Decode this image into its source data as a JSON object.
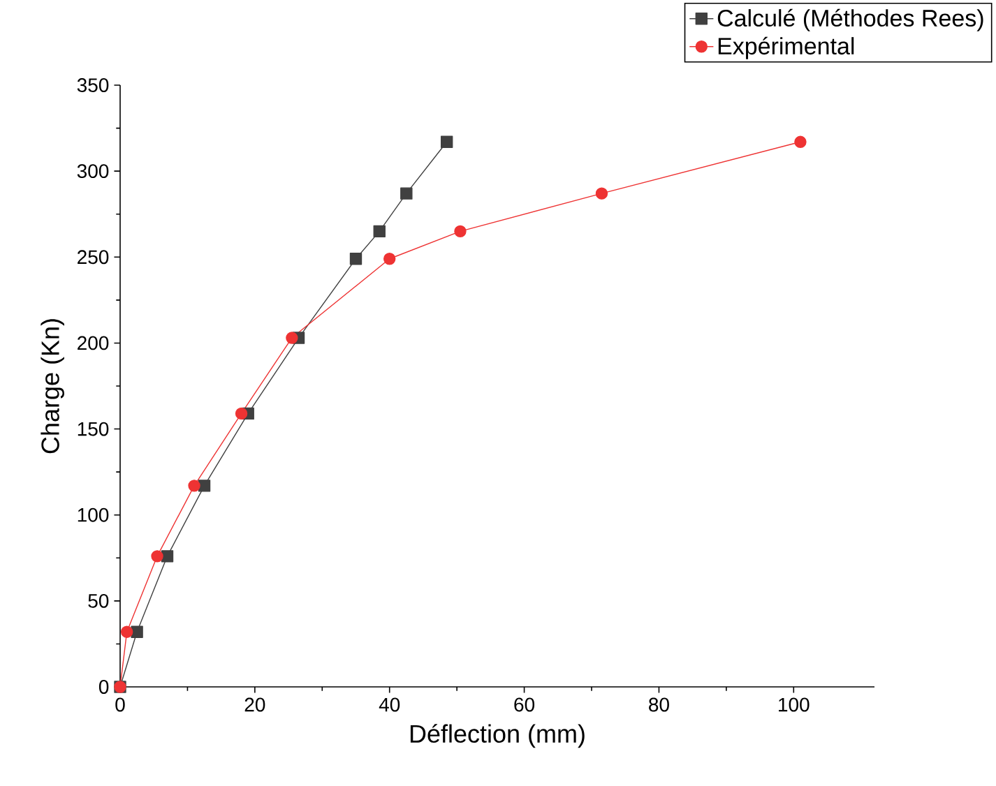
{
  "chart_data": {
    "type": "line",
    "xlabel": "Déflection (mm)",
    "ylabel": "Charge (Kn)",
    "xlim": [
      0,
      112
    ],
    "ylim": [
      0,
      350
    ],
    "xticks": [
      0,
      20,
      40,
      60,
      80,
      100
    ],
    "yticks": [
      0,
      50,
      100,
      150,
      200,
      250,
      300,
      350
    ],
    "legend": "top right",
    "series": [
      {
        "name": "Calculé (Méthodes Rees)",
        "color": "#404040",
        "marker": "square",
        "x": [
          0,
          2.5,
          7,
          12.5,
          19,
          26.5,
          35,
          38.5,
          42.5,
          48.5
        ],
        "values": [
          0,
          32,
          76,
          117,
          159,
          203,
          249,
          265,
          287,
          317
        ]
      },
      {
        "name": "Expérimental",
        "color": "#ee3333",
        "marker": "circle",
        "x": [
          0,
          1,
          5.5,
          11,
          18,
          25.5,
          40,
          50.5,
          71.5,
          101
        ],
        "values": [
          0,
          32,
          76,
          117,
          159,
          203,
          249,
          265,
          287,
          317
        ]
      }
    ]
  }
}
